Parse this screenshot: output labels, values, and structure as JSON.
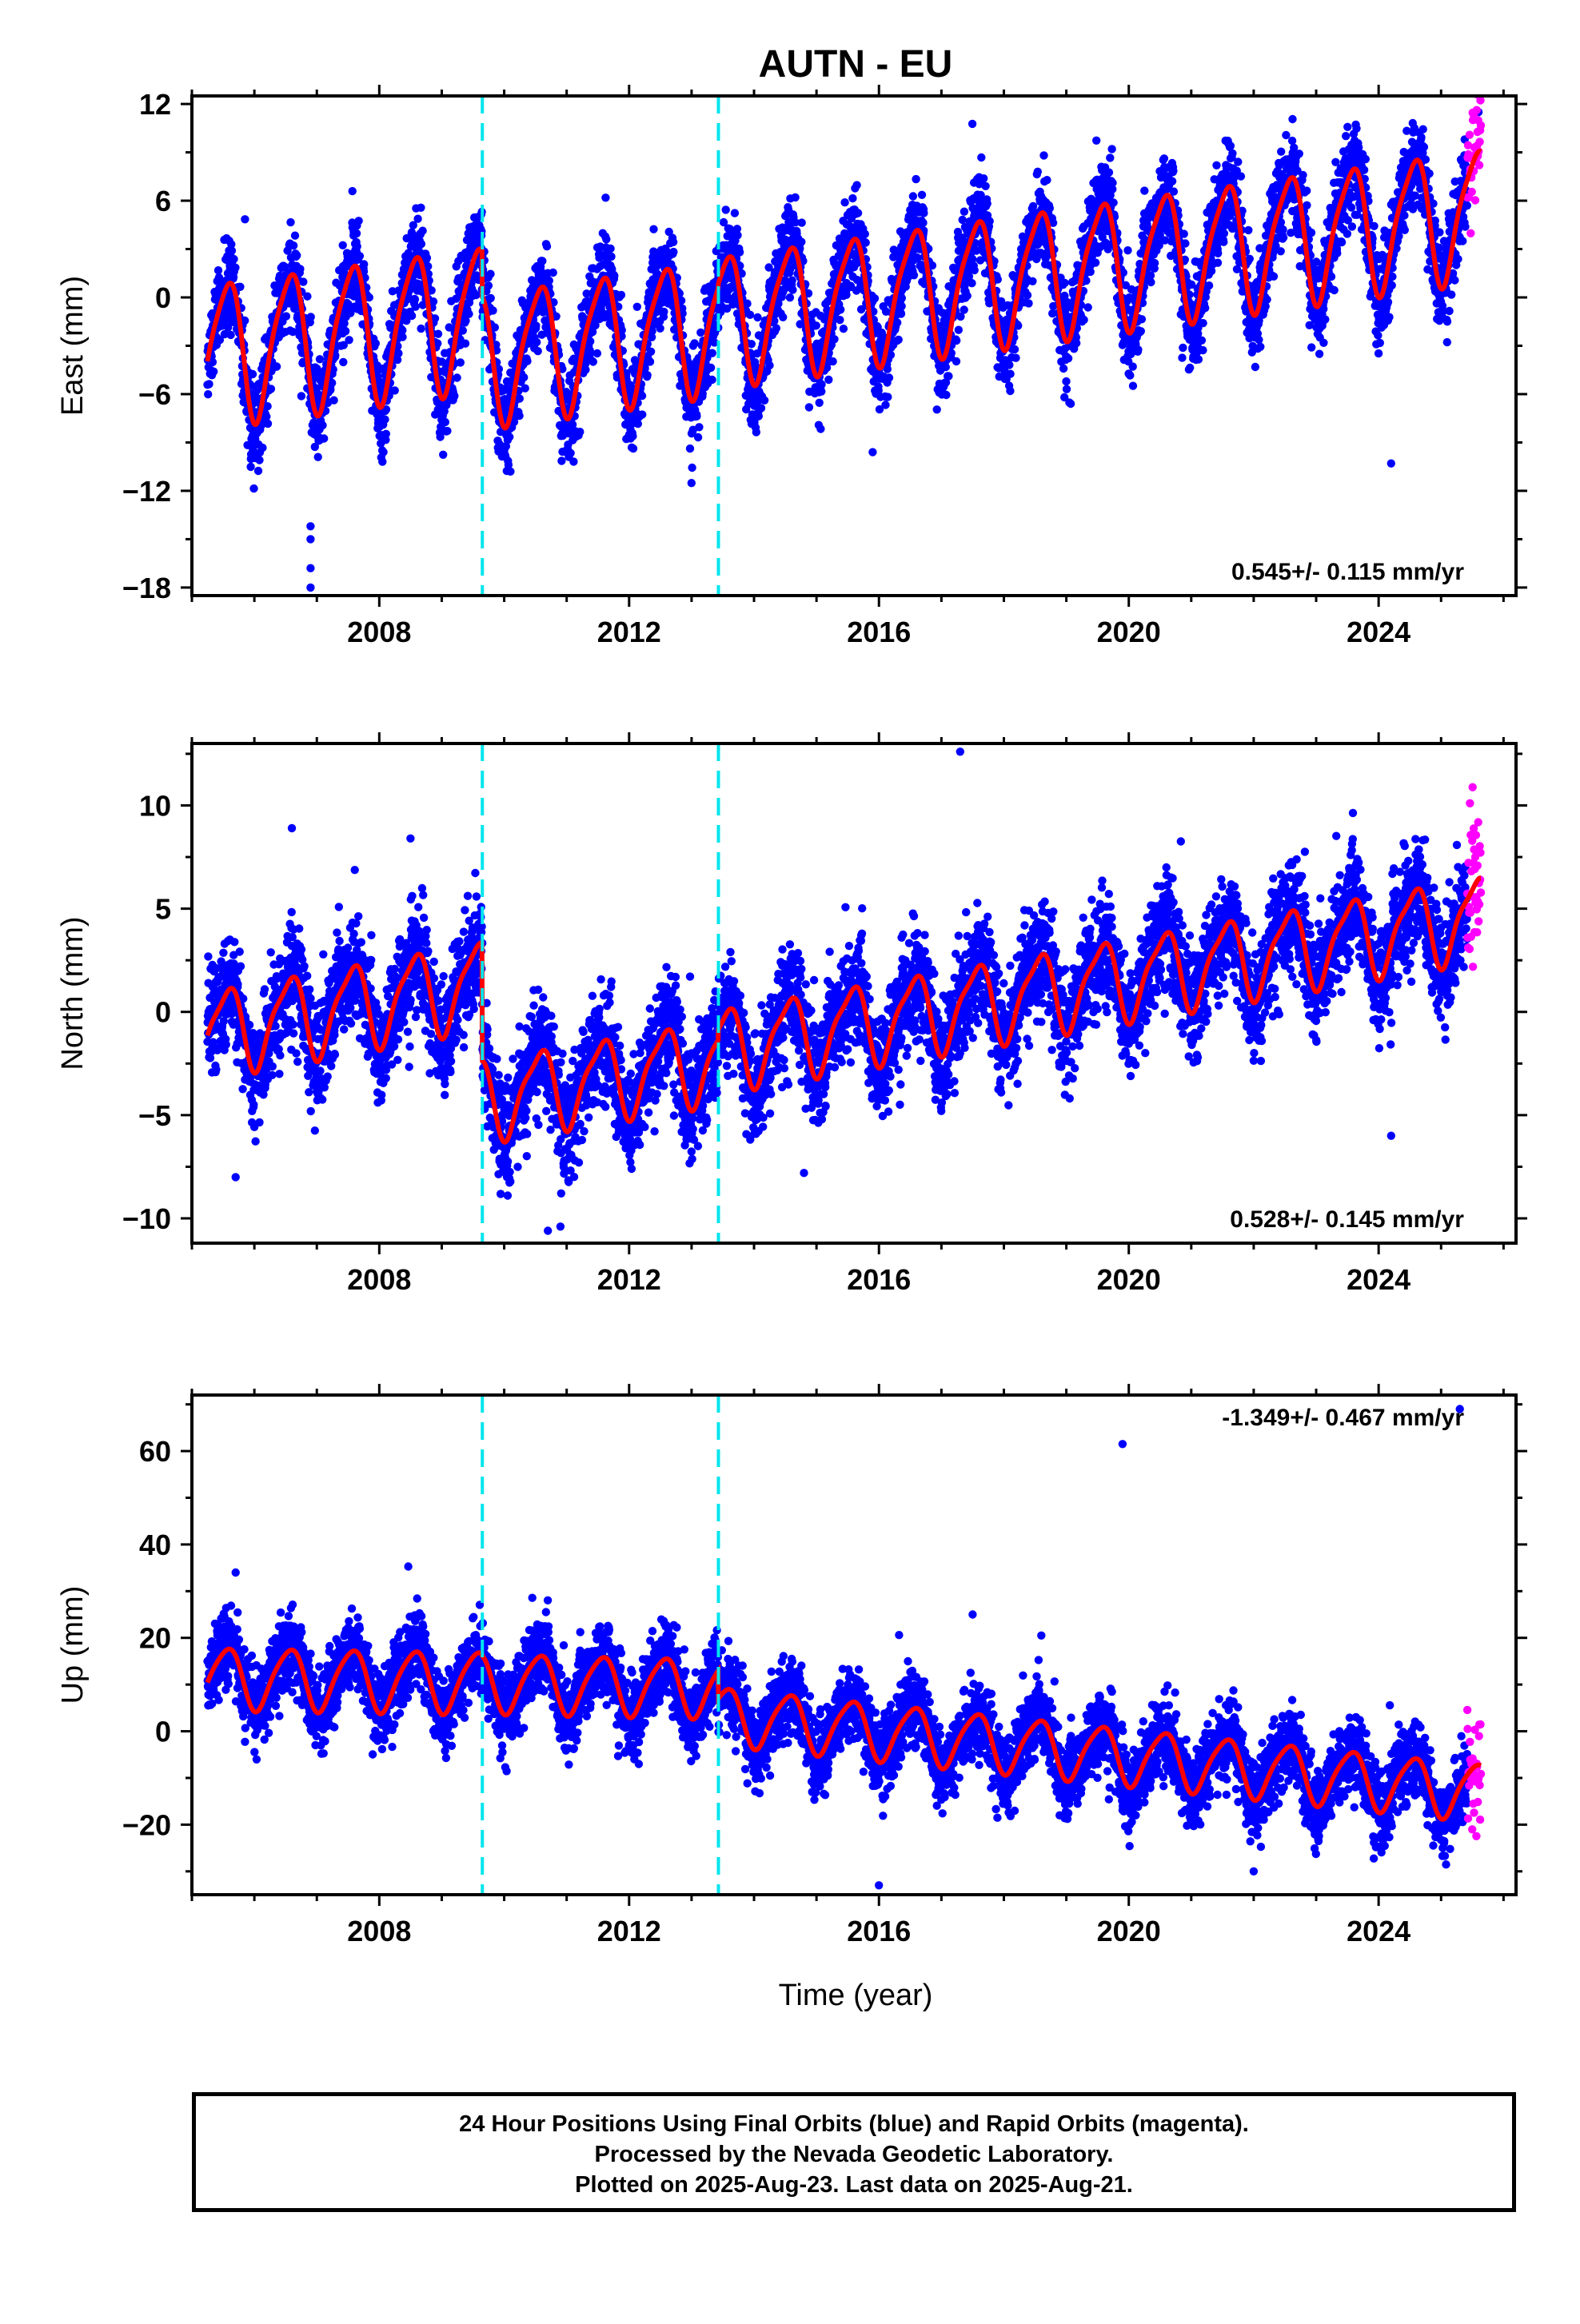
{
  "title": "AUTN - EU",
  "xlabel": "Time (year)",
  "colors": {
    "final": "#0000ff",
    "rapid": "#ff00ff",
    "model": "#ff0000",
    "breaks": "#00e5ee"
  },
  "footer": {
    "line1": "24 Hour Positions Using Final Orbits (blue) and Rapid Orbits (magenta).",
    "line2": "Processed by the Nevada Geodetic Laboratory.",
    "line3": "Plotted on 2025-Aug-23. Last data on 2025-Aug-21."
  },
  "chart_data": [
    {
      "type": "scatter",
      "component": "east",
      "ylabel": "East (mm)",
      "rate": "0.545+/- 0.115 mm/yr",
      "xlim": [
        2005.0,
        2026.2
      ],
      "ylim": [
        -18.5,
        12.5
      ],
      "xticks": [
        2008,
        2012,
        2016,
        2020,
        2024
      ],
      "yticks": [
        -18,
        -12,
        -6,
        0,
        6,
        12
      ],
      "breaks": [
        2009.65,
        2013.43
      ],
      "data_range": [
        2005.25,
        2025.42
      ],
      "rapid_range": [
        2025.42,
        2025.64
      ],
      "model": [
        {
          "from": 2005.25,
          "to": 2009.65,
          "offset": -3.4,
          "slope": 0.53,
          "annual": 4.3,
          "semiannual": 0.8,
          "start_value": -3.4
        },
        {
          "from": 2009.65,
          "to": 2013.43,
          "offset": -3.7,
          "slope": 0.55,
          "annual": 4.0,
          "semiannual": 0.8,
          "start_value": -3.7
        },
        {
          "from": 2013.43,
          "to": 2025.64,
          "offset": -1.3,
          "slope": 0.545,
          "annual": 3.9,
          "semiannual": 0.8,
          "start_value": -1.3
        }
      ],
      "scatter_sd": 1.4,
      "outliers": [
        [
          2006.9,
          -14.2
        ],
        [
          2006.9,
          -15.0
        ],
        [
          2006.9,
          -16.8
        ],
        [
          2006.9,
          -18.0
        ],
        [
          2015.9,
          -9.6
        ],
        [
          2024.2,
          -10.3
        ],
        [
          2010.1,
          -10.8
        ],
        [
          2025.6,
          11.5
        ]
      ]
    },
    {
      "type": "scatter",
      "component": "north",
      "ylabel": "North (mm)",
      "rate": "0.528+/- 0.145 mm/yr",
      "xlim": [
        2005.0,
        2026.2
      ],
      "ylim": [
        -11.2,
        13.0
      ],
      "xticks": [
        2008,
        2012,
        2016,
        2020,
        2024
      ],
      "yticks": [
        -10,
        -5,
        0,
        5,
        10
      ],
      "breaks": [
        2009.65,
        2013.43
      ],
      "data_range": [
        2005.25,
        2025.42
      ],
      "rapid_range": [
        2025.42,
        2025.64
      ],
      "model": [
        {
          "from": 2005.25,
          "to": 2009.65,
          "offset": -1.0,
          "slope": 0.55,
          "annual": 2.0,
          "semiannual": 0.5,
          "start_value": -1.0
        },
        {
          "from": 2009.65,
          "to": 2013.43,
          "offset": -4.2,
          "slope": 0.5,
          "annual": 1.9,
          "semiannual": 0.5,
          "start_value": -4.2
        },
        {
          "from": 2013.43,
          "to": 2025.64,
          "offset": -1.8,
          "slope": 0.528,
          "annual": 1.9,
          "semiannual": 0.5,
          "start_value": -1.8
        }
      ],
      "scatter_sd": 1.3,
      "outliers": [
        [
          2006.6,
          8.9
        ],
        [
          2008.5,
          8.4
        ],
        [
          2017.3,
          12.6
        ],
        [
          2024.2,
          -6.0
        ],
        [
          2010.9,
          -10.4
        ],
        [
          2010.7,
          -10.6
        ],
        [
          2005.7,
          -8.0
        ],
        [
          2014.8,
          -7.8
        ]
      ]
    },
    {
      "type": "scatter",
      "component": "up",
      "ylabel": "Up (mm)",
      "rate": "-1.349+/- 0.467 mm/yr",
      "xlim": [
        2005.0,
        2026.2
      ],
      "ylim": [
        -35.0,
        72.0
      ],
      "xticks": [
        2008,
        2012,
        2016,
        2020,
        2024
      ],
      "yticks": [
        -20,
        0,
        20,
        40,
        60
      ],
      "breaks": [
        2009.65,
        2013.43
      ],
      "data_range": [
        2005.25,
        2025.42
      ],
      "rapid_range": [
        2025.42,
        2025.64
      ],
      "model": [
        {
          "from": 2005.25,
          "to": 2009.65,
          "offset": 11.5,
          "slope": -0.2,
          "annual": 6.5,
          "semiannual": 1.0,
          "start_value": 11.5
        },
        {
          "from": 2009.65,
          "to": 2013.43,
          "offset": 10.5,
          "slope": -0.3,
          "annual": 6.2,
          "semiannual": 1.0,
          "start_value": 10.5
        },
        {
          "from": 2013.43,
          "to": 2025.64,
          "offset": 3.5,
          "slope": -1.349,
          "annual": 6.0,
          "semiannual": 1.0,
          "start_value": 3.5
        }
      ],
      "scatter_sd": 4.0,
      "outliers": [
        [
          2019.9,
          61.5
        ],
        [
          2025.3,
          69.0
        ],
        [
          2016.0,
          -33.0
        ],
        [
          2017.5,
          25.0
        ],
        [
          2018.6,
          20.5
        ],
        [
          2005.7,
          34.0
        ],
        [
          2022.0,
          -30.0
        ]
      ]
    }
  ]
}
